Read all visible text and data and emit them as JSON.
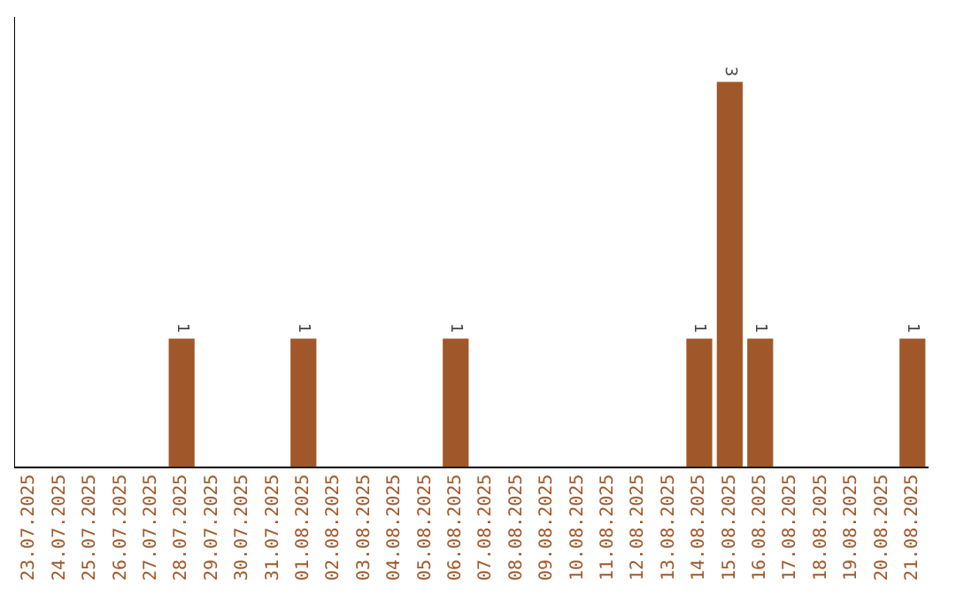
{
  "chart_data": {
    "type": "bar",
    "categories": [
      "23.07.2025",
      "24.07.2025",
      "25.07.2025",
      "26.07.2025",
      "27.07.2025",
      "28.07.2025",
      "29.07.2025",
      "30.07.2025",
      "31.07.2025",
      "01.08.2025",
      "02.08.2025",
      "03.08.2025",
      "04.08.2025",
      "05.08.2025",
      "06.08.2025",
      "07.08.2025",
      "08.08.2025",
      "09.08.2025",
      "10.08.2025",
      "11.08.2025",
      "12.08.2025",
      "13.08.2025",
      "14.08.2025",
      "15.08.2025",
      "16.08.2025",
      "17.08.2025",
      "18.08.2025",
      "19.08.2025",
      "20.08.2025",
      "21.08.2025"
    ],
    "values": [
      0,
      0,
      0,
      0,
      0,
      1,
      0,
      0,
      0,
      1,
      0,
      0,
      0,
      0,
      1,
      0,
      0,
      0,
      0,
      0,
      0,
      0,
      1,
      3,
      1,
      0,
      0,
      0,
      0,
      1
    ],
    "value_labels": [
      null,
      null,
      null,
      null,
      null,
      "1",
      null,
      null,
      null,
      "1",
      null,
      null,
      null,
      null,
      "1",
      null,
      null,
      null,
      null,
      null,
      null,
      null,
      "1",
      "3",
      "1",
      null,
      null,
      null,
      null,
      "1"
    ],
    "color": "#a0582a",
    "grid": false,
    "legend": false,
    "tick_labels": "x"
  }
}
